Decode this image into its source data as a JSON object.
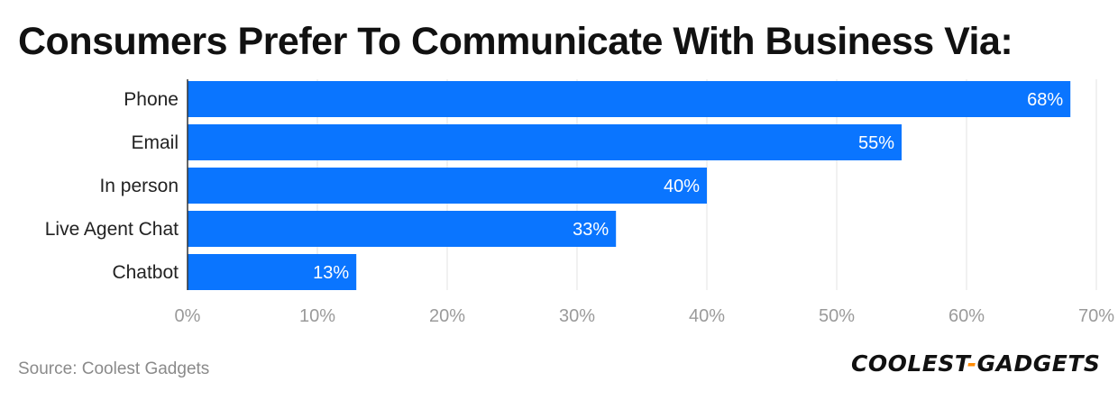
{
  "header": {
    "title": "Consumers Prefer To Communicate With Business Via:"
  },
  "chart_data": {
    "type": "bar",
    "orientation": "horizontal",
    "title": "Consumers Prefer To Communicate With Business Via:",
    "categories": [
      "Phone",
      "Email",
      "In person",
      "Live Agent Chat",
      "Chatbot"
    ],
    "values": [
      68,
      55,
      40,
      33,
      13
    ],
    "value_labels": [
      "68%",
      "55%",
      "40%",
      "33%",
      "13%"
    ],
    "xlim": [
      0,
      70
    ],
    "x_ticks": [
      0,
      10,
      20,
      30,
      40,
      50,
      60,
      70
    ],
    "x_tick_labels": [
      "0%",
      "10%",
      "20%",
      "30%",
      "40%",
      "50%",
      "60%",
      "70%"
    ],
    "xlabel": "",
    "ylabel": "",
    "grid": true,
    "bar_color": "#0a75ff"
  },
  "footer": {
    "source": "Source: Coolest Gadgets",
    "logo_part1": "COOLEST",
    "logo_dash": "-",
    "logo_part2": "GADGETS",
    "logo_dash_color": "#ff8a00"
  }
}
